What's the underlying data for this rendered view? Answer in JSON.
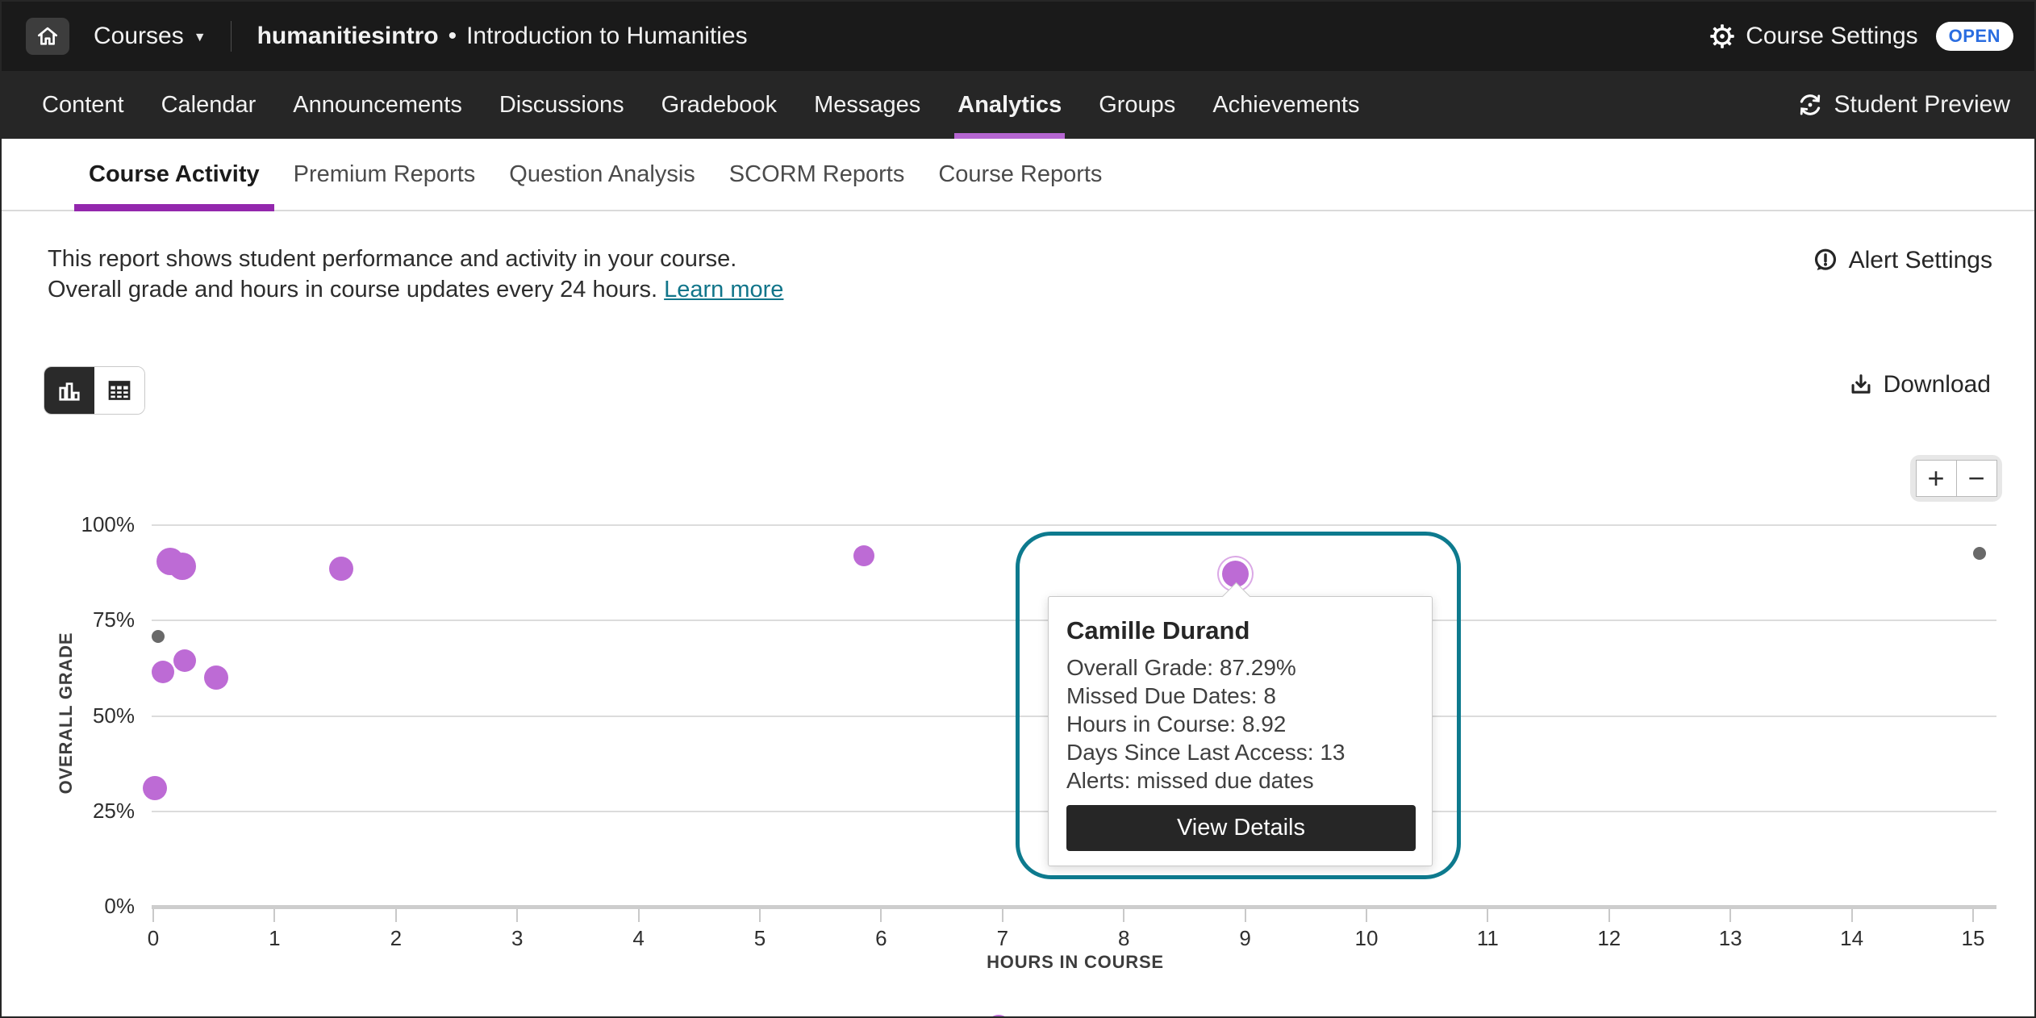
{
  "topbar": {
    "courses_label": "Courses",
    "course_code": "humanitiesintro",
    "separator": "•",
    "course_title": "Introduction to Humanities",
    "course_settings_label": "Course Settings",
    "open_badge": "OPEN",
    "student_preview_label": "Student Preview"
  },
  "nav_tabs": [
    {
      "label": "Content",
      "active": false
    },
    {
      "label": "Calendar",
      "active": false
    },
    {
      "label": "Announcements",
      "active": false
    },
    {
      "label": "Discussions",
      "active": false
    },
    {
      "label": "Gradebook",
      "active": false
    },
    {
      "label": "Messages",
      "active": false
    },
    {
      "label": "Analytics",
      "active": true
    },
    {
      "label": "Groups",
      "active": false
    },
    {
      "label": "Achievements",
      "active": false
    }
  ],
  "sub_tabs": [
    {
      "label": "Course Activity",
      "active": true
    },
    {
      "label": "Premium Reports",
      "active": false
    },
    {
      "label": "Question Analysis",
      "active": false
    },
    {
      "label": "SCORM Reports",
      "active": false
    },
    {
      "label": "Course Reports",
      "active": false
    }
  ],
  "report_header": {
    "description_line1": "This report shows student performance and activity in your course.",
    "description_line2": "Overall grade and hours in course updates every 24 hours.",
    "learn_more_label": "Learn more",
    "alert_settings_label": "Alert Settings",
    "download_label": "Download",
    "zoom_in_label": "+",
    "zoom_out_label": "−"
  },
  "tooltip": {
    "student_name": "Camille Durand",
    "details": [
      "Overall Grade: 87.29%",
      "Missed Due Dates: 8",
      "Hours in Course: 8.92",
      "Days Since Last Access: 13",
      "Alerts: missed due dates"
    ],
    "view_details_label": "View Details"
  },
  "colors": {
    "accent_purple_nav": "#b565d1",
    "accent_purple_subtab": "#9327ad",
    "dot_purple": "#bd6bd5",
    "dot_gray": "#696969",
    "focus_ring_teal": "#0d7a8e",
    "link_teal": "#11758a",
    "open_badge_blue": "#2b6de0"
  },
  "chart_data": {
    "type": "scatter",
    "title": "",
    "xlabel": "HOURS IN COURSE",
    "ylabel": "OVERALL GRADE",
    "xlim": [
      0,
      15
    ],
    "ylim": [
      0,
      100
    ],
    "grid": true,
    "x_ticks": [
      0,
      1,
      2,
      3,
      4,
      5,
      6,
      7,
      8,
      9,
      10,
      11,
      12,
      13,
      14,
      15
    ],
    "y_ticks": [
      {
        "label": "100%",
        "value": 100
      },
      {
        "label": "75%",
        "value": 75
      },
      {
        "label": "50%",
        "value": 50
      },
      {
        "label": "25%",
        "value": 25
      },
      {
        "label": "0%",
        "value": 0
      }
    ],
    "points": [
      {
        "hours": 0.14,
        "grade": 90.5,
        "size": 34,
        "color": "purple"
      },
      {
        "hours": 0.24,
        "grade": 89.3,
        "size": 34,
        "color": "purple"
      },
      {
        "hours": 1.55,
        "grade": 88.6,
        "size": 30,
        "color": "purple"
      },
      {
        "hours": 5.86,
        "grade": 92.0,
        "size": 26,
        "color": "purple"
      },
      {
        "hours": 8.92,
        "grade": 87.29,
        "size": 33,
        "color": "purple",
        "highlighted": true,
        "name": "Camille Durand",
        "missed_due_dates": 8,
        "days_since_last_access": 13,
        "alerts": "missed due dates"
      },
      {
        "hours": 0.04,
        "grade": 70.8,
        "size": 16,
        "color": "gray"
      },
      {
        "hours": 0.08,
        "grade": 61.5,
        "size": 28,
        "color": "purple"
      },
      {
        "hours": 0.26,
        "grade": 64.5,
        "size": 28,
        "color": "purple"
      },
      {
        "hours": 0.52,
        "grade": 60.0,
        "size": 30,
        "color": "purple"
      },
      {
        "hours": 0.01,
        "grade": 31.0,
        "size": 30,
        "color": "purple"
      },
      {
        "hours": 15.05,
        "grade": 92.5,
        "size": 16,
        "color": "gray"
      },
      {
        "hours": 6.97,
        "grade": -31.5,
        "size": 30,
        "color": "purple",
        "partial": true
      }
    ]
  }
}
